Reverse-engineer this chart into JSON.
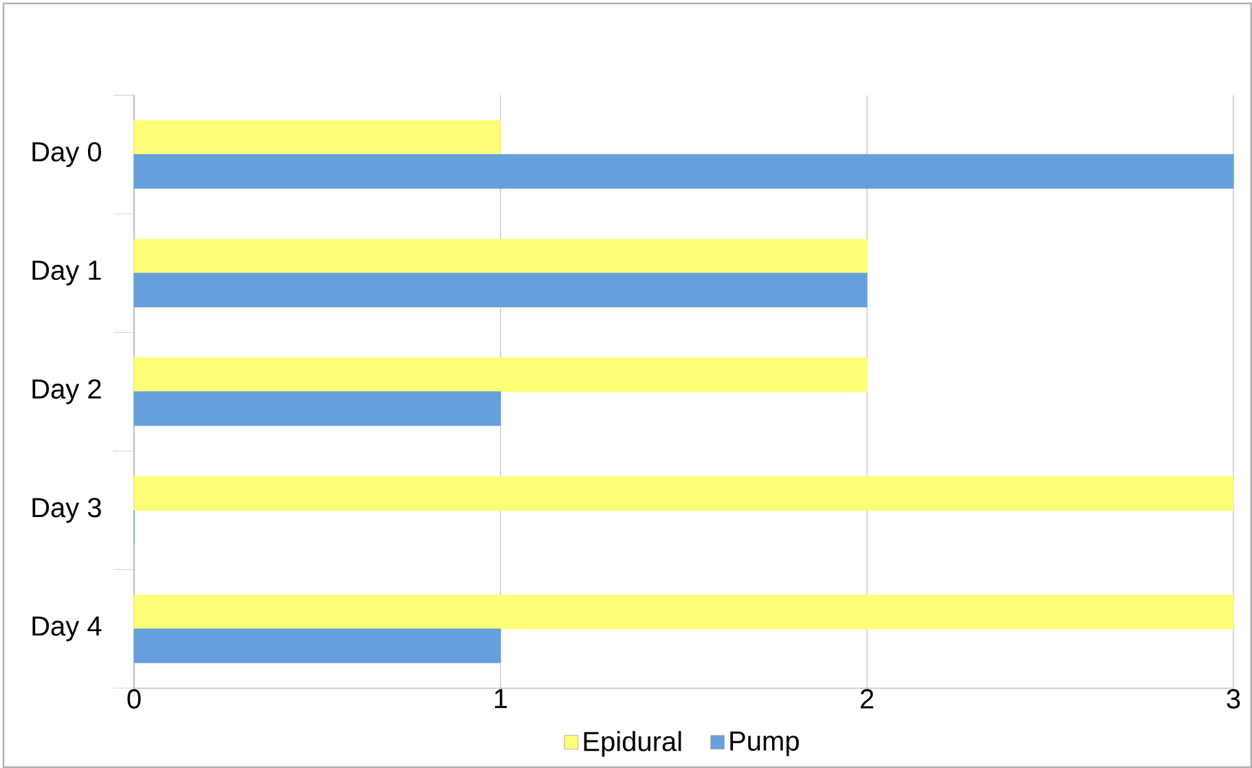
{
  "chart_data": {
    "type": "bar",
    "orientation": "horizontal",
    "categories": [
      "Day 0",
      "Day 1",
      "Day 2",
      "Day 3",
      "Day 4"
    ],
    "series": [
      {
        "name": "Epidural",
        "color": "#ffff77",
        "values": [
          1,
          2,
          2,
          3,
          3
        ]
      },
      {
        "name": "Pump",
        "color": "#66a0dc",
        "values": [
          3,
          2,
          1,
          0,
          1
        ]
      }
    ],
    "xlim": [
      0,
      3
    ],
    "xticks": [
      0,
      1,
      2,
      3
    ],
    "grid": "x",
    "legend": "bottom"
  }
}
